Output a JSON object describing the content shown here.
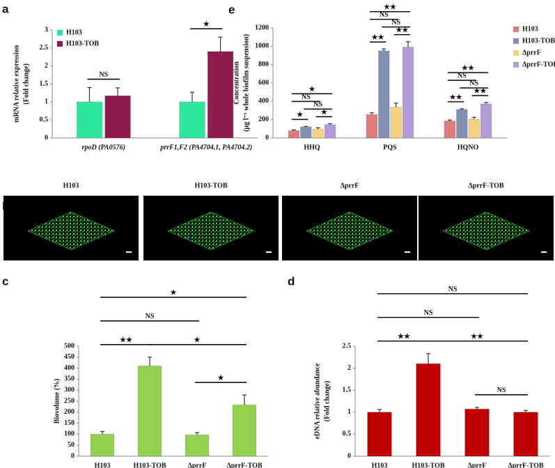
{
  "chart_data": [
    {
      "type": "bar",
      "label": "a",
      "ylabel": [
        "mRNA relative expression",
        "(Fold change)"
      ],
      "categories": [
        "rpoD (PA0576)",
        "prrF1,F2 (PA4704.1, PA4704.2)"
      ],
      "series": [
        {
          "name": "H103",
          "color": "#2de89c",
          "values": [
            1,
            1
          ],
          "errors": [
            0.4,
            0.27
          ]
        },
        {
          "name": "H103-TOB",
          "color": "#8e1b4d",
          "values": [
            1.17,
            2.4
          ],
          "errors": [
            0.22,
            0.4
          ]
        }
      ],
      "ylim": [
        0,
        3
      ],
      "yticks": [
        0,
        0.5,
        1,
        1.5,
        2,
        2.5,
        3
      ],
      "legend": "top-left",
      "significance": [
        {
          "pair": [
            [
              0,
              0
            ],
            [
              0,
              1
            ]
          ],
          "text": "NS"
        },
        {
          "pair": [
            [
              1,
              0
            ],
            [
              1,
              1
            ]
          ],
          "text": "★"
        }
      ]
    },
    {
      "type": "image-panels",
      "label": "b",
      "titles": [
        "H103",
        "H103-TOB",
        "ΔprrF",
        "ΔprrF-TOB"
      ]
    },
    {
      "type": "bar",
      "label": "c",
      "ylabel": [
        "Biovolume (%)"
      ],
      "categories": [
        "H103",
        "H103-TOB",
        "ΔprrF",
        "ΔprrF-TOB"
      ],
      "series": [
        {
          "color": "#92d050",
          "values": [
            100,
            410,
            97,
            233
          ],
          "errors": [
            12,
            40,
            10,
            45
          ]
        }
      ],
      "ylim": [
        0,
        500
      ],
      "yticks": [
        0,
        50,
        100,
        150,
        200,
        250,
        300,
        350,
        400,
        450,
        500
      ],
      "significance": [
        {
          "pair": [
            [
              2,
              0
            ],
            [
              3,
              0
            ]
          ],
          "text": "★"
        },
        {
          "pair": [
            [
              0,
              0
            ],
            [
              1,
              0
            ]
          ],
          "text": "★★"
        },
        {
          "pair": [
            [
              1,
              0
            ],
            [
              3,
              0
            ]
          ],
          "text": "★"
        },
        {
          "pair": [
            [
              0,
              0
            ],
            [
              2,
              0
            ]
          ],
          "text": "NS"
        },
        {
          "pair": [
            [
              0,
              0
            ],
            [
              3,
              0
            ]
          ],
          "text": "★"
        }
      ]
    },
    {
      "type": "bar",
      "label": "d",
      "ylabel": [
        "eDNA relative abundance",
        "(Fold change)"
      ],
      "categories": [
        "H103",
        "H103-TOB",
        "ΔprrF",
        "ΔprrF-TOB"
      ],
      "series": [
        {
          "color": "#c00000",
          "values": [
            1,
            2.1,
            1.07,
            1
          ],
          "errors": [
            0.06,
            0.23,
            0.04,
            0.04
          ]
        }
      ],
      "ylim": [
        0,
        2.5
      ],
      "yticks": [
        0,
        0.5,
        1,
        1.5,
        2,
        2.5
      ],
      "significance": [
        {
          "pair": [
            [
              2,
              0
            ],
            [
              3,
              0
            ]
          ],
          "text": "NS"
        },
        {
          "pair": [
            [
              0,
              0
            ],
            [
              1,
              0
            ]
          ],
          "text": "★★"
        },
        {
          "pair": [
            [
              1,
              0
            ],
            [
              3,
              0
            ]
          ],
          "text": "★★"
        },
        {
          "pair": [
            [
              0,
              0
            ],
            [
              2,
              0
            ]
          ],
          "text": "NS"
        },
        {
          "pair": [
            [
              0,
              0
            ],
            [
              3,
              0
            ]
          ],
          "text": "NS"
        }
      ]
    },
    {
      "type": "bar",
      "label": "e",
      "ylabel": [
        "Concentration",
        "(μg l⁻¹ whole biofilm suspension)"
      ],
      "categories": [
        "HHQ",
        "PQS",
        "HQNO"
      ],
      "series": [
        {
          "name": "H103",
          "color": "#e07b7b",
          "values": [
            80,
            255,
            185
          ],
          "errors": [
            8,
            20,
            10
          ]
        },
        {
          "name": "H103-TOB",
          "color": "#8091b3",
          "values": [
            120,
            950,
            310
          ],
          "errors": [
            6,
            20,
            8
          ]
        },
        {
          "name": "ΔprrF",
          "color": "#f6d27c",
          "values": [
            95,
            335,
            205
          ],
          "errors": [
            15,
            45,
            20
          ]
        },
        {
          "name": "ΔprrF-TOB",
          "color": "#b29bd9",
          "values": [
            145,
            990,
            370
          ],
          "errors": [
            10,
            60,
            15
          ]
        }
      ],
      "ylim": [
        0,
        1200
      ],
      "yticks": [
        0,
        200,
        400,
        600,
        800,
        1000,
        1200
      ],
      "legend": "right",
      "significance": [
        {
          "pair": [
            [
              0,
              0
            ],
            [
              0,
              1
            ]
          ],
          "text": "★"
        },
        {
          "pair": [
            [
              0,
              2
            ],
            [
              0,
              3
            ]
          ],
          "text": "★"
        },
        {
          "pair": [
            [
              0,
              1
            ],
            [
              0,
              3
            ]
          ],
          "text": "NS"
        },
        {
          "pair": [
            [
              0,
              0
            ],
            [
              0,
              2
            ]
          ],
          "text": "NS"
        },
        {
          "pair": [
            [
              0,
              0
            ],
            [
              0,
              3
            ]
          ],
          "text": "★"
        },
        {
          "pair": [
            [
              1,
              0
            ],
            [
              1,
              1
            ]
          ],
          "text": "★★"
        },
        {
          "pair": [
            [
              1,
              2
            ],
            [
              1,
              3
            ]
          ],
          "text": "★★"
        },
        {
          "pair": [
            [
              1,
              1
            ],
            [
              1,
              3
            ]
          ],
          "text": "NS"
        },
        {
          "pair": [
            [
              1,
              0
            ],
            [
              1,
              2
            ]
          ],
          "text": "NS"
        },
        {
          "pair": [
            [
              1,
              0
            ],
            [
              1,
              3
            ]
          ],
          "text": "★★"
        },
        {
          "pair": [
            [
              2,
              0
            ],
            [
              2,
              1
            ]
          ],
          "text": "★★"
        },
        {
          "pair": [
            [
              2,
              2
            ],
            [
              2,
              3
            ]
          ],
          "text": "★★"
        },
        {
          "pair": [
            [
              2,
              1
            ],
            [
              2,
              3
            ]
          ],
          "text": "NS"
        },
        {
          "pair": [
            [
              2,
              0
            ],
            [
              2,
              2
            ]
          ],
          "text": "NS"
        },
        {
          "pair": [
            [
              2,
              0
            ],
            [
              2,
              3
            ]
          ],
          "text": "★★"
        }
      ]
    }
  ]
}
